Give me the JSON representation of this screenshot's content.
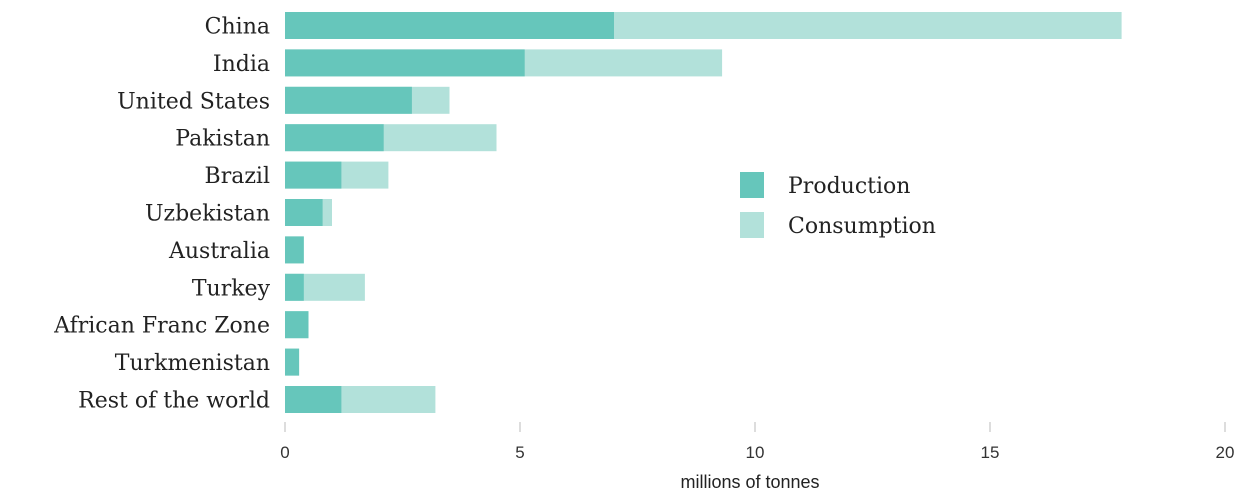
{
  "chart_data": {
    "type": "bar",
    "orientation": "horizontal",
    "stacked": false,
    "overlaid": true,
    "categories": [
      "China",
      "India",
      "United States",
      "Pakistan",
      "Brazil",
      "Uzbekistan",
      "Australia",
      "Turkey",
      "African Franc Zone",
      "Turkmenistan",
      "Rest of the world"
    ],
    "series": [
      {
        "name": "Consumption",
        "color": "#b2e1da",
        "values": [
          17.8,
          9.3,
          3.5,
          4.5,
          2.2,
          1.0,
          0.4,
          1.7,
          0.5,
          0.3,
          3.2
        ]
      },
      {
        "name": "Production",
        "color": "#66c6bb",
        "values": [
          7.0,
          5.1,
          2.7,
          2.1,
          1.2,
          0.8,
          0.4,
          0.4,
          0.5,
          0.3,
          1.2
        ]
      }
    ],
    "xlim": [
      0,
      20
    ],
    "xticks": [
      0,
      5,
      10,
      15,
      20
    ],
    "xlabel": "millions of tonnes",
    "legend": {
      "placement": "center-right",
      "items": [
        {
          "label": "Production",
          "color": "#66c6bb"
        },
        {
          "label": "Consumption",
          "color": "#b2e1da"
        }
      ]
    },
    "grid": false
  }
}
